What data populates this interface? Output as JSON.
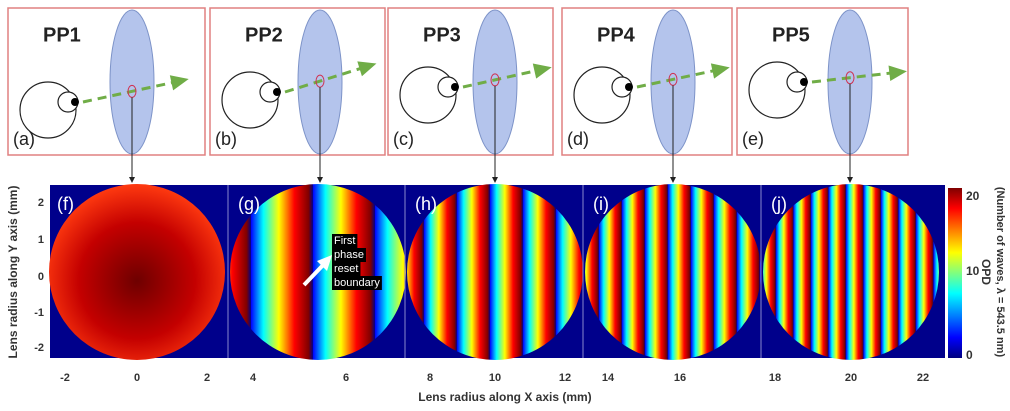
{
  "top_panels": [
    {
      "title": "PP1",
      "letter": "(a)"
    },
    {
      "title": "PP2",
      "letter": "(b)"
    },
    {
      "title": "PP3",
      "letter": "(c)"
    },
    {
      "title": "PP4",
      "letter": "(d)"
    },
    {
      "title": "PP5",
      "letter": "(e)"
    }
  ],
  "opd_panels": [
    "(f)",
    "(g)",
    "(h)",
    "(i)",
    "(j)"
  ],
  "annotation": [
    "First",
    "phase",
    "reset",
    "boundary"
  ],
  "y_axis": {
    "label": "Lens radius along Y axis (mm)",
    "ticks": [
      "2",
      "1",
      "0",
      "-1",
      "-2"
    ]
  },
  "x_axis": {
    "label": "Lens radius along X axis (mm)",
    "ticks": [
      "-2",
      "0",
      "2",
      "4",
      "6",
      "8",
      "10",
      "12",
      "14",
      "16",
      "18",
      "20",
      "22"
    ]
  },
  "colorbar": {
    "title": "OPD",
    "subtitle": "(Number of waves, λ = 543.5 nm)",
    "ticks": [
      "20",
      "10",
      "0"
    ]
  }
}
